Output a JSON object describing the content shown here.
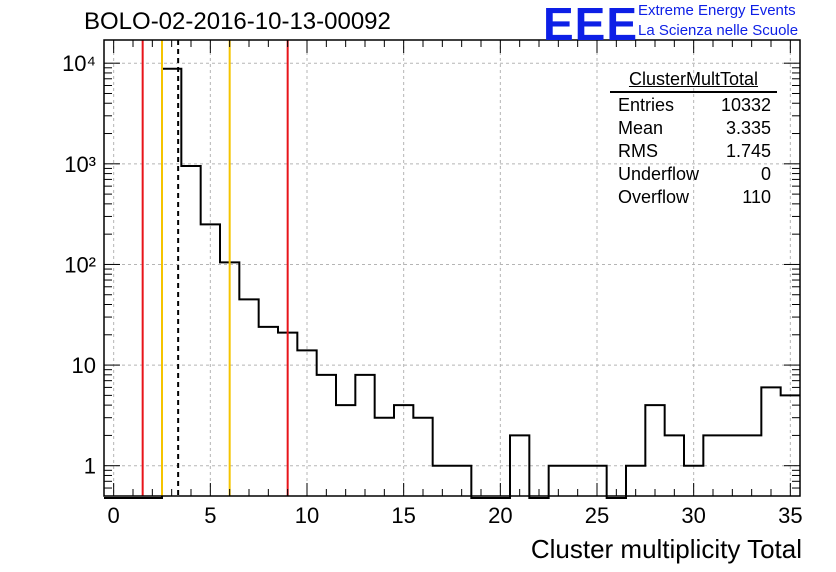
{
  "chart_data": {
    "type": "histogram",
    "title": "BOLO-02-2016-10-13-00092",
    "xlabel": "Cluster multiplicity Total",
    "ylabel": "",
    "xlim": [
      -0.5,
      35.5
    ],
    "ylim": [
      0.5,
      17000
    ],
    "y_scale": "log",
    "grid": true,
    "x_ticks": [
      "0",
      "5",
      "10",
      "15",
      "20",
      "25",
      "30",
      "35"
    ],
    "y_ticks": [
      {
        "v": 1,
        "label": "1"
      },
      {
        "v": 10,
        "label": "10"
      },
      {
        "v": 100,
        "label": "10²"
      },
      {
        "v": 1000,
        "label": "10³"
      },
      {
        "v": 10000,
        "label": "10⁴"
      }
    ],
    "bins": [
      {
        "x": 0,
        "y": 0
      },
      {
        "x": 1,
        "y": 0
      },
      {
        "x": 2,
        "y": 0
      },
      {
        "x": 3,
        "y": 8800
      },
      {
        "x": 4,
        "y": 950
      },
      {
        "x": 5,
        "y": 250
      },
      {
        "x": 6,
        "y": 105
      },
      {
        "x": 7,
        "y": 45
      },
      {
        "x": 8,
        "y": 24
      },
      {
        "x": 9,
        "y": 21
      },
      {
        "x": 10,
        "y": 14
      },
      {
        "x": 11,
        "y": 8
      },
      {
        "x": 12,
        "y": 4
      },
      {
        "x": 13,
        "y": 8
      },
      {
        "x": 14,
        "y": 3
      },
      {
        "x": 15,
        "y": 4
      },
      {
        "x": 16,
        "y": 3
      },
      {
        "x": 17,
        "y": 1
      },
      {
        "x": 18,
        "y": 1
      },
      {
        "x": 19,
        "y": 0
      },
      {
        "x": 20,
        "y": 0
      },
      {
        "x": 21,
        "y": 2
      },
      {
        "x": 22,
        "y": 0
      },
      {
        "x": 23,
        "y": 1
      },
      {
        "x": 24,
        "y": 1
      },
      {
        "x": 25,
        "y": 1
      },
      {
        "x": 26,
        "y": 0
      },
      {
        "x": 27,
        "y": 1
      },
      {
        "x": 28,
        "y": 4
      },
      {
        "x": 29,
        "y": 2
      },
      {
        "x": 30,
        "y": 1
      },
      {
        "x": 31,
        "y": 2
      },
      {
        "x": 32,
        "y": 2
      },
      {
        "x": 33,
        "y": 2
      },
      {
        "x": 34,
        "y": 6
      },
      {
        "x": 35,
        "y": 5
      }
    ],
    "vertical_lines": [
      {
        "x": 1.5,
        "color": "#e8141a",
        "style": "solid"
      },
      {
        "x": 2.5,
        "color": "#f5c400",
        "style": "solid"
      },
      {
        "x": 3.335,
        "color": "#000000",
        "style": "dashed"
      },
      {
        "x": 6.0,
        "color": "#f5c400",
        "style": "solid"
      },
      {
        "x": 9.0,
        "color": "#e8141a",
        "style": "solid"
      }
    ]
  },
  "stats_box": {
    "title": "ClusterMultTotal",
    "rows": [
      {
        "label": "Entries",
        "value": "10332"
      },
      {
        "label": "Mean",
        "value": "3.335"
      },
      {
        "label": "RMS",
        "value": "1.745"
      },
      {
        "label": "Underflow",
        "value": "0"
      },
      {
        "label": "Overflow",
        "value": "110"
      }
    ]
  },
  "logo": {
    "mark": "EEE",
    "line1": "Extreme Energy Events",
    "line2": "La Scienza nelle Scuole"
  }
}
